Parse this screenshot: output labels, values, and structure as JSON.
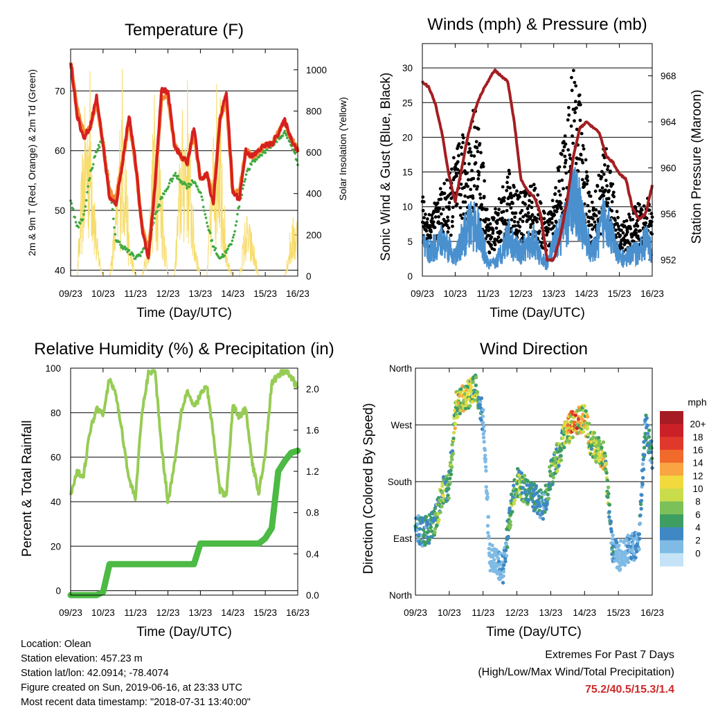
{
  "panels": [
    {
      "id": "temperature",
      "title": "Temperature (F)",
      "xlabel": "Time (Day/UTC)",
      "ylabel_left": "2m & 9m T (Red, Orange) & 2m Td (Green)",
      "ylabel_right": "Solar Insolation (Yellow)",
      "x_ticks": [
        "09/23",
        "10/23",
        "11/23",
        "12/23",
        "13/23",
        "14/23",
        "15/23",
        "16/23"
      ],
      "y_ticks_left": [
        "40",
        "50",
        "60",
        "70"
      ],
      "y_ticks_right": [
        "0",
        "200",
        "400",
        "600",
        "800",
        "1000"
      ]
    },
    {
      "id": "winds",
      "title": "Winds (mph) & Pressure (mb)",
      "xlabel": "Time (Day/UTC)",
      "ylabel_left": "Sonic Wind & Gust (Blue, Black)",
      "ylabel_right": "Station Pressure (Maroon)",
      "x_ticks": [
        "09/23",
        "10/23",
        "11/23",
        "12/23",
        "13/23",
        "14/23",
        "15/23",
        "16/23"
      ],
      "y_ticks_left": [
        "0",
        "5",
        "10",
        "15",
        "20",
        "25",
        "30"
      ],
      "y_ticks_right": [
        "952",
        "956",
        "960",
        "964",
        "968"
      ]
    },
    {
      "id": "humidity",
      "title": "Relative Humidity (%) & Precipitation (in)",
      "xlabel": "Time (Day/UTC)",
      "ylabel_left": "Percent & Total Rainfall",
      "x_ticks": [
        "09/23",
        "10/23",
        "11/23",
        "12/23",
        "13/23",
        "14/23",
        "15/23",
        "16/23"
      ],
      "y_ticks_left": [
        "0",
        "20",
        "40",
        "60",
        "80",
        "100"
      ],
      "y_ticks_right": [
        "0.0",
        "0.4",
        "0.8",
        "1.2",
        "1.6",
        "2.0"
      ]
    },
    {
      "id": "direction",
      "title": "Wind Direction",
      "xlabel": "Time (Day/UTC)",
      "ylabel_left": "Direction (Colored By Speed)",
      "x_ticks": [
        "09/23",
        "10/23",
        "11/23",
        "12/23",
        "13/23",
        "14/23",
        "15/23",
        "16/23"
      ],
      "y_ticks_left": [
        "North",
        "East",
        "South",
        "West",
        "North"
      ],
      "colorbar_title": "mph",
      "colorbar_labels": [
        "20+",
        "18",
        "16",
        "14",
        "12",
        "10",
        "8",
        "6",
        "4",
        "2",
        "0"
      ],
      "colorbar_colors": [
        "#a51d23",
        "#cb2027",
        "#e0392b",
        "#f06a2c",
        "#f9a543",
        "#f2d93d",
        "#c9dd4a",
        "#7cc05a",
        "#3e9d62",
        "#3f88c3",
        "#7fbbe5",
        "#c4e3f6"
      ]
    }
  ],
  "chart_data": [
    {
      "type": "line",
      "title": "Temperature (F)",
      "xlabel": "Time (Day/UTC)",
      "ylabel": "2m & 9m T (Red, Orange) & 2m Td (Green)",
      "y2label": "Solar Insolation (Yellow)",
      "ylim": [
        39,
        77
      ],
      "y2lim": [
        0,
        1100
      ],
      "xlim": [
        0,
        7
      ],
      "x_day": [
        0,
        0.2,
        0.4,
        0.6,
        0.8,
        1.0,
        1.2,
        1.4,
        1.6,
        1.8,
        2.0,
        2.2,
        2.4,
        2.6,
        2.8,
        3.0,
        3.2,
        3.4,
        3.6,
        3.8,
        4.0,
        4.2,
        4.4,
        4.6,
        4.8,
        5.0,
        5.2,
        5.4,
        5.6,
        5.8,
        6.0,
        6.2,
        6.4,
        6.6,
        6.8,
        7.0
      ],
      "series": [
        {
          "name": "2m T",
          "color": "#d62020",
          "values": [
            75,
            66,
            62,
            64,
            69,
            61,
            52,
            51,
            58,
            66,
            58,
            47,
            42,
            54,
            70,
            70,
            61,
            59,
            58,
            64,
            55,
            56,
            51,
            65,
            70,
            53,
            52,
            60,
            59,
            60,
            61,
            61,
            63,
            65,
            62,
            60
          ]
        },
        {
          "name": "9m T",
          "color": "#f28a30",
          "values": [
            75,
            67,
            63,
            64,
            68,
            61,
            53,
            52,
            58,
            65,
            58,
            47,
            43,
            54,
            69,
            69,
            61,
            59,
            58,
            63,
            55,
            56,
            52,
            65,
            69,
            53,
            53,
            60,
            59,
            60,
            61,
            61,
            63,
            65,
            62,
            60
          ]
        },
        {
          "name": "2m Td",
          "color": "#3faa3f",
          "values": [
            52,
            47,
            49,
            56,
            60,
            62,
            54,
            45,
            44,
            43,
            42,
            43,
            45,
            49,
            52,
            54,
            56,
            55,
            54,
            55,
            53,
            48,
            44,
            42,
            43,
            45,
            51,
            56,
            58,
            59,
            60,
            61,
            62,
            63,
            61,
            58
          ]
        },
        {
          "name": "Solar Insolation",
          "color": "#f7dc6a",
          "axis": "right",
          "values": [
            0,
            0,
            700,
            950,
            200,
            0,
            0,
            350,
            1000,
            200,
            0,
            0,
            200,
            900,
            500,
            0,
            0,
            700,
            900,
            250,
            0,
            0,
            700,
            1050,
            100,
            0,
            0,
            300,
            200,
            0,
            0,
            0,
            0,
            0,
            250,
            300
          ]
        }
      ]
    },
    {
      "type": "scatter",
      "title": "Winds (mph) & Pressure (mb)",
      "xlabel": "Time (Day/UTC)",
      "ylabel": "Sonic Wind & Gust (Blue, Black)",
      "y2label": "Station Pressure (Maroon)",
      "ylim": [
        0,
        33.5
      ],
      "y2lim": [
        950.6,
        970.8
      ],
      "xlim": [
        0,
        7
      ],
      "x_day": [
        0,
        0.2,
        0.4,
        0.6,
        0.8,
        1.0,
        1.2,
        1.4,
        1.6,
        1.8,
        2.0,
        2.2,
        2.4,
        2.6,
        2.8,
        3.0,
        3.2,
        3.4,
        3.6,
        3.8,
        4.0,
        4.2,
        4.4,
        4.6,
        4.8,
        5.0,
        5.2,
        5.4,
        5.6,
        5.8,
        6.0,
        6.2,
        6.4,
        6.6,
        6.8,
        7.0
      ],
      "series": [
        {
          "name": "Sonic Wind",
          "color": "#4a90cf",
          "values": [
            5,
            4,
            5,
            6,
            5,
            3,
            6,
            8,
            9,
            6,
            2,
            2,
            4,
            7,
            5,
            4,
            5,
            6,
            3,
            2,
            5,
            7,
            9,
            14,
            11,
            6,
            4,
            7,
            11,
            6,
            3,
            3,
            4,
            4,
            6,
            4
          ]
        },
        {
          "name": "Gust",
          "color": "#000000",
          "values": [
            10,
            8,
            9,
            11,
            12,
            15,
            17,
            18,
            21,
            16,
            7,
            8,
            10,
            13,
            12,
            10,
            11,
            12,
            9,
            7,
            10,
            15,
            19,
            26,
            22,
            13,
            9,
            13,
            17,
            11,
            6,
            7,
            8,
            9,
            10,
            9
          ]
        },
        {
          "name": "Station Pressure",
          "color": "#a31e22",
          "axis": "right",
          "values": [
            967.5,
            967,
            965.5,
            963,
            959.5,
            957,
            960,
            963,
            965,
            966.5,
            967.5,
            968.5,
            968,
            967.5,
            964,
            959,
            958,
            957.5,
            956,
            952,
            952,
            954,
            957,
            961,
            963.5,
            964,
            963.5,
            963,
            961,
            960.5,
            959.5,
            959,
            956.5,
            955.5,
            956,
            958.5
          ]
        }
      ]
    },
    {
      "type": "line",
      "title": "Relative Humidity (%) & Precipitation (in)",
      "xlabel": "Time (Day/UTC)",
      "ylabel": "Percent & Total Rainfall",
      "ylim": [
        -2,
        100
      ],
      "y2lim": [
        0,
        2.2
      ],
      "xlim": [
        0,
        7
      ],
      "x_day": [
        0,
        0.2,
        0.4,
        0.6,
        0.8,
        1.0,
        1.2,
        1.4,
        1.6,
        1.8,
        2.0,
        2.2,
        2.4,
        2.6,
        2.8,
        3.0,
        3.2,
        3.4,
        3.6,
        3.8,
        4.0,
        4.2,
        4.4,
        4.6,
        4.8,
        5.0,
        5.2,
        5.4,
        5.6,
        5.8,
        6.0,
        6.2,
        6.4,
        6.6,
        6.8,
        7.0
      ],
      "series": [
        {
          "name": "Relative Humidity",
          "color": "#96cc55",
          "values": [
            43,
            53,
            52,
            72,
            82,
            80,
            95,
            88,
            70,
            50,
            42,
            80,
            98,
            99,
            65,
            40,
            57,
            80,
            90,
            82,
            88,
            92,
            70,
            45,
            43,
            83,
            78,
            82,
            57,
            44,
            62,
            93,
            97,
            99,
            96,
            91
          ]
        },
        {
          "name": "Total Precipitation",
          "color": "#4cba44",
          "axis": "right",
          "values": [
            0,
            0,
            0,
            0,
            0,
            0.03,
            0.3,
            0.3,
            0.3,
            0.3,
            0.3,
            0.3,
            0.3,
            0.3,
            0.3,
            0.3,
            0.3,
            0.3,
            0.3,
            0.3,
            0.5,
            0.5,
            0.5,
            0.5,
            0.5,
            0.5,
            0.5,
            0.5,
            0.5,
            0.5,
            0.55,
            0.65,
            1.2,
            1.3,
            1.38,
            1.4
          ]
        }
      ]
    },
    {
      "type": "scatter",
      "title": "Wind Direction",
      "xlabel": "Time (Day/UTC)",
      "ylabel": "Direction (Colored By Speed)",
      "ylim": [
        0,
        360
      ],
      "xlim": [
        0,
        7
      ],
      "y_ticks": [
        "North",
        "East",
        "South",
        "West",
        "North"
      ],
      "x_day": [
        0.0,
        0.2,
        0.4,
        0.6,
        0.8,
        1.0,
        1.2,
        1.4,
        1.6,
        1.8,
        2.0,
        2.2,
        2.4,
        2.6,
        2.8,
        3.0,
        3.2,
        3.4,
        3.6,
        3.8,
        4.0,
        4.2,
        4.4,
        4.6,
        4.8,
        5.0,
        5.2,
        5.4,
        5.6,
        5.8,
        6.0,
        6.2,
        6.4,
        6.6,
        6.8,
        7.0
      ],
      "direction_deg": [
        110,
        100,
        105,
        120,
        165,
        175,
        300,
        310,
        320,
        330,
        280,
        60,
        50,
        40,
        130,
        180,
        170,
        160,
        150,
        140,
        190,
        220,
        250,
        270,
        275,
        280,
        240,
        230,
        220,
        80,
        60,
        70,
        75,
        80,
        270,
        220
      ],
      "speed_mph": [
        4,
        4,
        5,
        6,
        8,
        6,
        10,
        10,
        9,
        8,
        2,
        2,
        2,
        3,
        6,
        8,
        6,
        5,
        4,
        4,
        6,
        7,
        8,
        13,
        14,
        11,
        8,
        9,
        10,
        4,
        2,
        2,
        3,
        3,
        5,
        4
      ]
    }
  ],
  "footer": {
    "location": "Location: Olean",
    "elevation": "Station elevation: 457.23 m",
    "latlon": "Station lat/lon: 42.0914; -78.4074",
    "created": "Figure created on Sun, 2019-06-16, at 23:33 UTC",
    "timestamp": "Most recent data timestamp: \"2018-07-31 13:40:00\""
  },
  "extremes": {
    "title": "Extremes For Past 7 Days",
    "subtitle": "(High/Low/Max Wind/Total Precipitation)",
    "values": "75.2/40.5/15.3/1.4"
  }
}
